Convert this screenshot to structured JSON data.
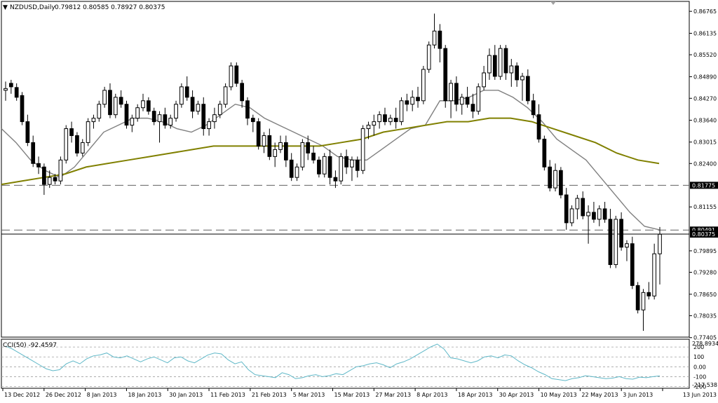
{
  "header": {
    "symbol_label": "NZDUSD,Daily",
    "ohlc_label": "0.79812 0.80585 0.78927 0.80375"
  },
  "indicator": {
    "label": "CCI(50) -92.4597",
    "max_label": "278.8934",
    "min_label": "-217.538",
    "levels": [
      200,
      100,
      0,
      -100,
      -200
    ],
    "level_labels": [
      "200",
      "100",
      "0.00",
      "-100",
      "-200"
    ],
    "current_value_label": "-92.4597"
  },
  "colors": {
    "background": "#ffffff",
    "grid": "#c8c8c8",
    "bull_candle": "#ffffff",
    "bear_candle": "#000000",
    "sma_fast": "#808080",
    "sma_slow": "#808000",
    "cci_line": "#5fb8c8",
    "price_line": "#000000"
  },
  "chart_data": [
    {
      "type": "line",
      "title": "NZDUSD,Daily",
      "style": "candlestick",
      "ylim": [
        0.7742,
        0.8705
      ],
      "y_ticks": [
        "0.86765",
        "0.86135",
        "0.85520",
        "0.84890",
        "0.84270",
        "0.83640",
        "0.83015",
        "0.82400",
        "0.81775",
        "0.81155",
        "0.80491",
        "0.79895",
        "0.79280",
        "0.78650",
        "0.78035",
        "0.77405"
      ],
      "x_ticks": [
        "13 Dec 2012",
        "26 Dec 2012",
        "8 Jan 2013",
        "18 Jan 2013",
        "30 Jan 2013",
        "11 Feb 2013",
        "21 Feb 2013",
        "5 Mar 2013",
        "15 Mar 2013",
        "27 Mar 2013",
        "8 Apr 2013",
        "18 Apr 2013",
        "30 Apr 2013",
        "10 May 2013",
        "22 May 2013",
        "3 Jun 2013",
        "13 Jun 2013"
      ],
      "horizontal_lines": [
        {
          "value": 0.81775,
          "label": "0.81775",
          "style": "dashed"
        },
        {
          "value": 0.80491,
          "label": "0.80491",
          "style": "dashed"
        },
        {
          "value": 0.80375,
          "label": "0.80375",
          "style": "solid"
        }
      ],
      "grid": false,
      "candles": [
        [
          0.845,
          0.8475,
          0.842,
          0.8455
        ],
        [
          0.847,
          0.848,
          0.844,
          0.846
        ],
        [
          0.8458,
          0.847,
          0.842,
          0.843
        ],
        [
          0.8435,
          0.8445,
          0.835,
          0.836
        ],
        [
          0.836,
          0.838,
          0.829,
          0.83
        ],
        [
          0.83,
          0.832,
          0.823,
          0.824
        ],
        [
          0.824,
          0.826,
          0.821,
          0.823
        ],
        [
          0.823,
          0.824,
          0.815,
          0.818
        ],
        [
          0.818,
          0.822,
          0.817,
          0.82
        ],
        [
          0.82,
          0.821,
          0.818,
          0.819
        ],
        [
          0.819,
          0.826,
          0.818,
          0.825
        ],
        [
          0.825,
          0.835,
          0.824,
          0.834
        ],
        [
          0.834,
          0.836,
          0.83,
          0.832
        ],
        [
          0.832,
          0.833,
          0.826,
          0.827
        ],
        [
          0.827,
          0.831,
          0.826,
          0.83
        ],
        [
          0.83,
          0.837,
          0.829,
          0.836
        ],
        [
          0.836,
          0.838,
          0.834,
          0.837
        ],
        [
          0.837,
          0.842,
          0.836,
          0.841
        ],
        [
          0.841,
          0.846,
          0.84,
          0.845
        ],
        [
          0.845,
          0.847,
          0.837,
          0.838
        ],
        [
          0.838,
          0.844,
          0.837,
          0.843
        ],
        [
          0.843,
          0.845,
          0.84,
          0.841
        ],
        [
          0.841,
          0.842,
          0.834,
          0.835
        ],
        [
          0.835,
          0.838,
          0.833,
          0.837
        ],
        [
          0.837,
          0.841,
          0.836,
          0.84
        ],
        [
          0.84,
          0.844,
          0.839,
          0.842
        ],
        [
          0.842,
          0.843,
          0.838,
          0.839
        ],
        [
          0.839,
          0.84,
          0.835,
          0.836
        ],
        [
          0.836,
          0.839,
          0.83,
          0.838
        ],
        [
          0.838,
          0.84,
          0.834,
          0.835
        ],
        [
          0.835,
          0.838,
          0.834,
          0.837
        ],
        [
          0.837,
          0.842,
          0.836,
          0.841
        ],
        [
          0.841,
          0.847,
          0.84,
          0.846
        ],
        [
          0.846,
          0.849,
          0.842,
          0.843
        ],
        [
          0.843,
          0.845,
          0.837,
          0.839
        ],
        [
          0.839,
          0.842,
          0.838,
          0.841
        ],
        [
          0.841,
          0.843,
          0.832,
          0.834
        ],
        [
          0.834,
          0.837,
          0.832,
          0.836
        ],
        [
          0.836,
          0.84,
          0.834,
          0.838
        ],
        [
          0.838,
          0.842,
          0.837,
          0.841
        ],
        [
          0.841,
          0.847,
          0.84,
          0.846
        ],
        [
          0.846,
          0.853,
          0.845,
          0.852
        ],
        [
          0.852,
          0.853,
          0.846,
          0.847
        ],
        [
          0.847,
          0.848,
          0.84,
          0.842
        ],
        [
          0.842,
          0.843,
          0.835,
          0.837
        ],
        [
          0.837,
          0.838,
          0.833,
          0.836
        ],
        [
          0.836,
          0.837,
          0.828,
          0.829
        ],
        [
          0.829,
          0.833,
          0.827,
          0.832
        ],
        [
          0.832,
          0.834,
          0.825,
          0.826
        ],
        [
          0.826,
          0.83,
          0.823,
          0.828
        ],
        [
          0.828,
          0.832,
          0.827,
          0.83
        ],
        [
          0.83,
          0.832,
          0.823,
          0.825
        ],
        [
          0.825,
          0.827,
          0.819,
          0.82
        ],
        [
          0.82,
          0.824,
          0.819,
          0.823
        ],
        [
          0.823,
          0.831,
          0.822,
          0.83
        ],
        [
          0.83,
          0.832,
          0.825,
          0.827
        ],
        [
          0.827,
          0.829,
          0.824,
          0.825
        ],
        [
          0.825,
          0.826,
          0.82,
          0.821
        ],
        [
          0.821,
          0.827,
          0.82,
          0.826
        ],
        [
          0.826,
          0.828,
          0.818,
          0.82
        ],
        [
          0.82,
          0.822,
          0.817,
          0.819
        ],
        [
          0.819,
          0.827,
          0.818,
          0.826
        ],
        [
          0.826,
          0.828,
          0.821,
          0.823
        ],
        [
          0.823,
          0.826,
          0.819,
          0.825
        ],
        [
          0.825,
          0.826,
          0.82,
          0.822
        ],
        [
          0.822,
          0.835,
          0.821,
          0.834
        ],
        [
          0.834,
          0.836,
          0.831,
          0.835
        ],
        [
          0.835,
          0.838,
          0.832,
          0.836
        ],
        [
          0.836,
          0.839,
          0.834,
          0.838
        ],
        [
          0.838,
          0.84,
          0.835,
          0.836
        ],
        [
          0.836,
          0.838,
          0.835,
          0.837
        ],
        [
          0.837,
          0.84,
          0.834,
          0.836
        ],
        [
          0.836,
          0.843,
          0.835,
          0.842
        ],
        [
          0.842,
          0.844,
          0.839,
          0.841
        ],
        [
          0.841,
          0.845,
          0.839,
          0.843
        ],
        [
          0.843,
          0.846,
          0.84,
          0.842
        ],
        [
          0.842,
          0.852,
          0.841,
          0.851
        ],
        [
          0.851,
          0.859,
          0.85,
          0.858
        ],
        [
          0.858,
          0.867,
          0.857,
          0.862
        ],
        [
          0.862,
          0.864,
          0.853,
          0.857
        ],
        [
          0.857,
          0.858,
          0.84,
          0.842
        ],
        [
          0.842,
          0.848,
          0.837,
          0.847
        ],
        [
          0.847,
          0.849,
          0.839,
          0.841
        ],
        [
          0.841,
          0.844,
          0.838,
          0.843
        ],
        [
          0.843,
          0.846,
          0.84,
          0.841
        ],
        [
          0.841,
          0.844,
          0.837,
          0.839
        ],
        [
          0.839,
          0.847,
          0.838,
          0.846
        ],
        [
          0.846,
          0.852,
          0.845,
          0.85
        ],
        [
          0.85,
          0.857,
          0.848,
          0.855
        ],
        [
          0.855,
          0.858,
          0.848,
          0.849
        ],
        [
          0.849,
          0.858,
          0.848,
          0.857
        ],
        [
          0.857,
          0.858,
          0.848,
          0.85
        ],
        [
          0.85,
          0.854,
          0.846,
          0.852
        ],
        [
          0.852,
          0.853,
          0.846,
          0.848
        ],
        [
          0.848,
          0.85,
          0.842,
          0.849
        ],
        [
          0.849,
          0.851,
          0.841,
          0.842
        ],
        [
          0.842,
          0.844,
          0.837,
          0.838
        ],
        [
          0.838,
          0.841,
          0.83,
          0.831
        ],
        [
          0.831,
          0.832,
          0.822,
          0.823
        ],
        [
          0.823,
          0.825,
          0.816,
          0.817
        ],
        [
          0.817,
          0.824,
          0.816,
          0.822
        ],
        [
          0.822,
          0.823,
          0.814,
          0.815
        ],
        [
          0.815,
          0.817,
          0.805,
          0.807
        ],
        [
          0.807,
          0.812,
          0.806,
          0.811
        ],
        [
          0.811,
          0.815,
          0.808,
          0.814
        ],
        [
          0.814,
          0.816,
          0.808,
          0.809
        ],
        [
          0.809,
          0.812,
          0.801,
          0.81
        ],
        [
          0.81,
          0.813,
          0.807,
          0.808
        ],
        [
          0.808,
          0.812,
          0.806,
          0.811
        ],
        [
          0.811,
          0.813,
          0.807,
          0.808
        ],
        [
          0.808,
          0.811,
          0.794,
          0.795
        ],
        [
          0.795,
          0.809,
          0.794,
          0.808
        ],
        [
          0.808,
          0.81,
          0.799,
          0.8
        ],
        [
          0.8,
          0.802,
          0.796,
          0.801
        ],
        [
          0.801,
          0.803,
          0.788,
          0.789
        ],
        [
          0.789,
          0.79,
          0.781,
          0.782
        ],
        [
          0.782,
          0.788,
          0.776,
          0.787
        ],
        [
          0.787,
          0.79,
          0.785,
          0.786
        ],
        [
          0.786,
          0.801,
          0.785,
          0.7981
        ],
        [
          0.7981,
          0.8058,
          0.7893,
          0.8037
        ]
      ],
      "series": [
        {
          "name": "",
          "style": "sma_fast",
          "values": [
            0.834,
            0.83,
            0.825,
            0.822,
            0.82,
            0.823,
            0.828,
            0.833,
            0.835,
            0.837,
            0.837,
            0.836,
            0.834,
            0.833,
            0.835,
            0.838,
            0.841,
            0.84,
            0.837,
            0.835,
            0.833,
            0.831,
            0.829,
            0.826,
            0.825,
            0.825,
            0.828,
            0.831,
            0.834,
            0.835,
            0.842,
            0.842,
            0.843,
            0.845,
            0.845,
            0.843,
            0.84,
            0.836,
            0.831,
            0.828,
            0.825,
            0.82,
            0.815,
            0.81,
            0.806,
            0.805
          ]
        },
        {
          "name": "",
          "style": "sma_slow",
          "values": [
            0.818,
            0.819,
            0.82,
            0.821,
            0.823,
            0.824,
            0.825,
            0.826,
            0.827,
            0.828,
            0.829,
            0.829,
            0.829,
            0.829,
            0.829,
            0.829,
            0.83,
            0.831,
            0.833,
            0.834,
            0.835,
            0.836,
            0.836,
            0.837,
            0.837,
            0.836,
            0.834,
            0.832,
            0.83,
            0.827,
            0.825,
            0.824
          ]
        }
      ]
    },
    {
      "type": "line",
      "title": "CCI(50) -92.4597",
      "ylim": [
        -217.538,
        278.8934
      ],
      "series": [
        {
          "name": "",
          "values": [
            210,
            180,
            140,
            100,
            60,
            20,
            -20,
            -40,
            -30,
            30,
            60,
            30,
            80,
            110,
            120,
            140,
            100,
            90,
            110,
            80,
            50,
            80,
            100,
            70,
            40,
            90,
            100,
            60,
            40,
            80,
            120,
            140,
            130,
            70,
            30,
            50,
            -30,
            -80,
            -90,
            -100,
            -110,
            -60,
            -80,
            -120,
            -110,
            -90,
            -80,
            -100,
            -90,
            -70,
            -80,
            -40,
            0,
            10,
            30,
            40,
            20,
            -10,
            30,
            50,
            80,
            120,
            160,
            200,
            230,
            180,
            90,
            80,
            60,
            40,
            60,
            100,
            110,
            90,
            120,
            110,
            60,
            20,
            -10,
            -50,
            -80,
            -120,
            -130,
            -140,
            -120,
            -110,
            -90,
            -100,
            -110,
            -120,
            -115,
            -100,
            -120,
            -125,
            -105,
            -110,
            -100,
            -92
          ]
        }
      ]
    }
  ]
}
